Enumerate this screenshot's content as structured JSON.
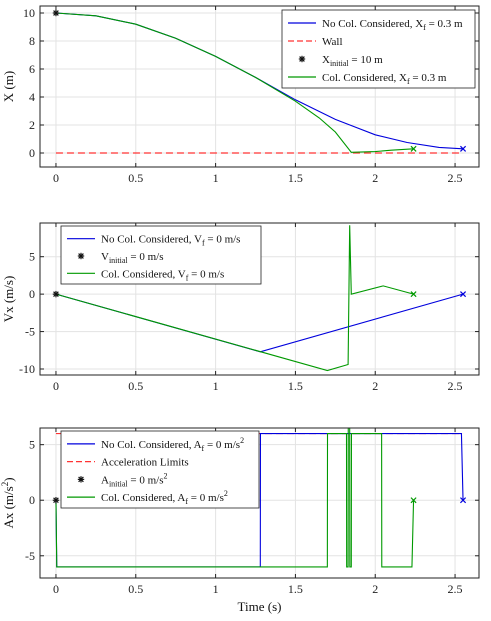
{
  "chart_data": [
    {
      "type": "line",
      "ylabel": "X (m)",
      "xlabel": "",
      "xlim": [
        -0.1,
        2.65
      ],
      "ylim": [
        -1,
        10.5
      ],
      "xticks": [
        0,
        0.5,
        1,
        1.5,
        2,
        2.5
      ],
      "xtick_labels": [
        "0",
        "0.5",
        "1",
        "1.5",
        "2",
        "2.5"
      ],
      "yticks": [
        0,
        2,
        4,
        6,
        8,
        10
      ],
      "ytick_labels": [
        "0",
        "2",
        "4",
        "6",
        "8",
        "10"
      ],
      "grid": true,
      "legend_position": "top-right",
      "legend": [
        {
          "text": "No Col. Considered, X",
          "sub": "f",
          "suffix": " = 0.3 m",
          "color": "#0000dd",
          "style": "solid"
        },
        {
          "text": "Wall",
          "sub": "",
          "suffix": "",
          "color": "#ff3333",
          "style": "dashed"
        },
        {
          "text": "X",
          "sub": "initial",
          "suffix": " = 10 m",
          "color": "#111111",
          "style": "marker"
        },
        {
          "text": "Col. Considered, X",
          "sub": "f",
          "suffix": " = 0.3 m",
          "color": "#009900",
          "style": "solid"
        }
      ],
      "series": [
        {
          "key": "no_col",
          "color": "#0000dd",
          "x": [
            0,
            0.25,
            0.5,
            0.75,
            1.0,
            1.25,
            1.5,
            1.75,
            2.0,
            2.2,
            2.4,
            2.55
          ],
          "y": [
            10,
            9.8,
            9.2,
            8.2,
            6.9,
            5.4,
            3.8,
            2.4,
            1.3,
            0.75,
            0.4,
            0.3
          ]
        },
        {
          "key": "wall",
          "color": "#ff3333",
          "dashed": true,
          "x": [
            0,
            2.55
          ],
          "y": [
            0,
            0
          ]
        },
        {
          "key": "col",
          "color": "#009900",
          "x": [
            0,
            0.25,
            0.5,
            0.75,
            1.0,
            1.25,
            1.5,
            1.65,
            1.75,
            1.85,
            2.0,
            2.1,
            2.24
          ],
          "y": [
            10,
            9.8,
            9.2,
            8.2,
            6.9,
            5.4,
            3.7,
            2.5,
            1.5,
            0.05,
            0.1,
            0.2,
            0.3
          ]
        }
      ],
      "markers": [
        {
          "x": 0,
          "y": 10,
          "symbol": "star",
          "color": "#111111"
        },
        {
          "x": 2.55,
          "y": 0.3,
          "symbol": "x",
          "color": "#0000dd"
        },
        {
          "x": 2.24,
          "y": 0.3,
          "symbol": "x",
          "color": "#009900"
        }
      ]
    },
    {
      "type": "line",
      "ylabel": "Vx (m/s)",
      "xlabel": "",
      "xlim": [
        -0.1,
        2.65
      ],
      "ylim": [
        -10.8,
        9.5
      ],
      "xticks": [
        0,
        0.5,
        1,
        1.5,
        2,
        2.5
      ],
      "xtick_labels": [
        "0",
        "0.5",
        "1",
        "1.5",
        "2",
        "2.5"
      ],
      "yticks": [
        -10,
        -5,
        0,
        5
      ],
      "ytick_labels": [
        "-10",
        "-5",
        "0",
        "5"
      ],
      "grid": true,
      "legend_position": "top-left",
      "legend": [
        {
          "text": "No Col. Considered, V",
          "sub": "f",
          "suffix": " = 0 m/s",
          "color": "#0000dd",
          "style": "solid"
        },
        {
          "text": "V",
          "sub": "initial",
          "suffix": " = 0 m/s",
          "color": "#111111",
          "style": "marker"
        },
        {
          "text": "Col. Considered, V",
          "sub": "f",
          "suffix": " = 0 m/s",
          "color": "#009900",
          "style": "solid"
        }
      ],
      "series": [
        {
          "key": "no_col",
          "color": "#0000dd",
          "x": [
            0,
            1.28,
            2.55
          ],
          "y": [
            0,
            -7.7,
            0
          ]
        },
        {
          "key": "col",
          "color": "#009900",
          "x": [
            0,
            1.7,
            1.83,
            1.84,
            1.85,
            2.05,
            2.24
          ],
          "y": [
            0,
            -10.2,
            -9.4,
            9.2,
            0,
            1.1,
            0
          ]
        }
      ],
      "markers": [
        {
          "x": 0,
          "y": 0,
          "symbol": "star",
          "color": "#111111"
        },
        {
          "x": 2.55,
          "y": 0,
          "symbol": "x",
          "color": "#0000dd"
        },
        {
          "x": 2.24,
          "y": 0,
          "symbol": "x",
          "color": "#009900"
        }
      ]
    },
    {
      "type": "line",
      "ylabel": "Ax (m/s",
      "ylabel_sup": "2",
      "ylabel_tail": ")",
      "xlabel": "Time (s)",
      "xlim": [
        -0.1,
        2.65
      ],
      "ylim": [
        -7,
        6.5
      ],
      "xticks": [
        0,
        0.5,
        1,
        1.5,
        2,
        2.5
      ],
      "xtick_labels": [
        "0",
        "0.5",
        "1",
        "1.5",
        "2",
        "2.5"
      ],
      "yticks": [
        -5,
        0,
        5
      ],
      "ytick_labels": [
        "-5",
        "0",
        "5"
      ],
      "grid": true,
      "legend_position": "top-left",
      "legend": [
        {
          "text": "No Col. Considered, A",
          "sub": "f",
          "suffix": " = 0 m/s",
          "sup": "2",
          "color": "#0000dd",
          "style": "solid"
        },
        {
          "text": "Acceleration Limits",
          "sub": "",
          "suffix": "",
          "color": "#ff3333",
          "style": "dashed"
        },
        {
          "text": "A",
          "sub": "initial",
          "suffix": " = 0 m/s",
          "sup": "2",
          "color": "#111111",
          "style": "marker"
        },
        {
          "text": "Col. Considered, A",
          "sub": "f",
          "suffix": " = 0 m/s",
          "sup": "2",
          "color": "#009900",
          "style": "solid"
        }
      ],
      "series": [
        {
          "key": "limits_upper",
          "color": "#ff3333",
          "dashed": true,
          "x": [
            0,
            2.55
          ],
          "y": [
            6,
            6
          ]
        },
        {
          "key": "no_col",
          "color": "#0000dd",
          "x": [
            0,
            0.005,
            1.28,
            1.281,
            2.54,
            2.55
          ],
          "y": [
            0,
            -6,
            -6,
            6,
            6,
            0
          ]
        },
        {
          "key": "col",
          "color": "#009900",
          "x": [
            0,
            0.005,
            1.7,
            1.701,
            1.82,
            1.821,
            1.83,
            1.831,
            1.84,
            1.841,
            1.85,
            1.851,
            2.04,
            2.041,
            2.23,
            2.24
          ],
          "y": [
            0,
            -6,
            -6,
            6,
            6,
            -6,
            -6,
            6.5,
            6.5,
            -6,
            -6,
            6,
            6,
            -6,
            -6,
            0
          ]
        }
      ],
      "markers": [
        {
          "x": 0,
          "y": 0,
          "symbol": "star",
          "color": "#111111"
        },
        {
          "x": 2.55,
          "y": 0,
          "symbol": "x",
          "color": "#0000dd"
        },
        {
          "x": 2.24,
          "y": 0,
          "symbol": "x",
          "color": "#009900"
        }
      ]
    }
  ]
}
